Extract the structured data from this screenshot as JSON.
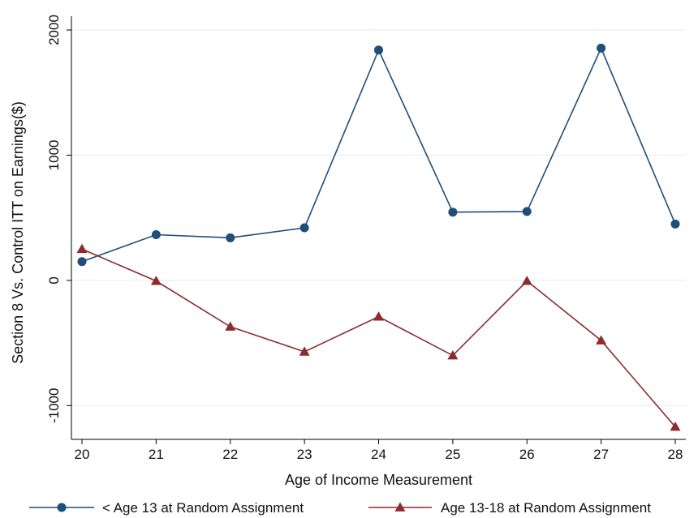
{
  "chart_data": {
    "type": "line",
    "title": "",
    "xlabel": "Age of Income Measurement",
    "ylabel": "Section 8 Vs. Control ITT on Earnings($)",
    "x": [
      20,
      21,
      22,
      23,
      24,
      25,
      26,
      27,
      28
    ],
    "x_ticks": [
      "20",
      "21",
      "22",
      "23",
      "24",
      "25",
      "26",
      "27",
      "28"
    ],
    "y_ticks": [
      {
        "value": -1000,
        "label": "-1000"
      },
      {
        "value": 0,
        "label": "0"
      },
      {
        "value": 1000,
        "label": "1000"
      },
      {
        "value": 2000,
        "label": "2000"
      }
    ],
    "xlim": [
      20,
      28
    ],
    "ylim": [
      -1270,
      2110
    ],
    "grid": true,
    "legend_position": "bottom",
    "series": [
      {
        "name": "< Age 13 at Random Assignment",
        "marker": "circle",
        "color": "#1f4e79",
        "values": [
          150,
          365,
          340,
          420,
          1840,
          545,
          550,
          1855,
          450
        ]
      },
      {
        "name": "Age 13-18 at Random Assignment",
        "marker": "triangle",
        "color": "#8b2c2f",
        "values": [
          250,
          -5,
          -370,
          -570,
          -290,
          -600,
          -5,
          -480,
          -1170
        ]
      }
    ]
  }
}
